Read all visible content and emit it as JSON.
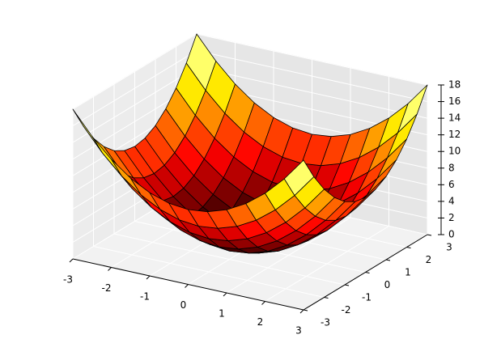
{
  "chart_data": {
    "type": "surface",
    "cmap": "hot",
    "x": [
      -3,
      -2.5,
      -2,
      -1.5,
      -1,
      -0.5,
      0,
      0.5,
      1,
      1.5,
      2,
      2.5,
      3
    ],
    "y": [
      -3,
      -2.5,
      -2,
      -1.5,
      -1,
      -0.5,
      0,
      0.5,
      1,
      1.5,
      2,
      2.5,
      3
    ],
    "z": [
      [
        18,
        15.25,
        13,
        11.25,
        10,
        9.25,
        9,
        9.25,
        10,
        11.25,
        13,
        15.25,
        18
      ],
      [
        15.25,
        12.5,
        10.25,
        8.5,
        7.25,
        6.5,
        6.25,
        6.5,
        7.25,
        8.5,
        10.25,
        12.5,
        15.25
      ],
      [
        13,
        10.25,
        8,
        6.25,
        5,
        4.25,
        4,
        4.25,
        5,
        6.25,
        8,
        10.25,
        13
      ],
      [
        11.25,
        8.5,
        6.25,
        4.5,
        3.25,
        2.5,
        2.25,
        2.5,
        3.25,
        4.5,
        6.25,
        8.5,
        11.25
      ],
      [
        10,
        7.25,
        5,
        3.25,
        2,
        1.25,
        1,
        1.25,
        2,
        3.25,
        5,
        7.25,
        10
      ],
      [
        9.25,
        6.5,
        4.25,
        2.5,
        1.25,
        0.5,
        0.25,
        0.5,
        1.25,
        2.5,
        4.25,
        6.5,
        9.25
      ],
      [
        9,
        6.25,
        4,
        2.25,
        1,
        0.25,
        0,
        0.25,
        1,
        2.25,
        4,
        6.25,
        9
      ],
      [
        9.25,
        6.5,
        4.25,
        2.5,
        1.25,
        0.5,
        0.25,
        0.5,
        1.25,
        2.5,
        4.25,
        6.5,
        9.25
      ],
      [
        10,
        7.25,
        5,
        3.25,
        2,
        1.25,
        1,
        1.25,
        2,
        3.25,
        5,
        7.25,
        10
      ],
      [
        11.25,
        8.5,
        6.25,
        4.5,
        3.25,
        2.5,
        2.25,
        2.5,
        3.25,
        4.5,
        6.25,
        8.5,
        11.25
      ],
      [
        13,
        10.25,
        8,
        6.25,
        5,
        4.25,
        4,
        4.25,
        5,
        6.25,
        8,
        10.25,
        13
      ],
      [
        15.25,
        12.5,
        10.25,
        8.5,
        7.25,
        6.5,
        6.25,
        6.5,
        7.25,
        8.5,
        10.25,
        12.5,
        15.25
      ],
      [
        18,
        15.25,
        13,
        11.25,
        10,
        9.25,
        9,
        9.25,
        10,
        11.25,
        13,
        15.25,
        18
      ]
    ],
    "xlim": [
      -3,
      3
    ],
    "ylim": [
      -3,
      3
    ],
    "zlim": [
      0,
      18
    ],
    "xticks": [
      -3,
      -2,
      -1,
      0,
      1,
      2,
      3
    ],
    "yticks": [
      -3,
      -2,
      -1,
      0,
      1,
      2,
      3
    ],
    "zticks": [
      0,
      2,
      4,
      6,
      8,
      10,
      12,
      14,
      16,
      18
    ],
    "grid": true
  }
}
